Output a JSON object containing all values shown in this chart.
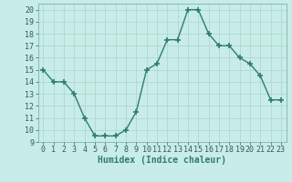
{
  "x": [
    0,
    1,
    2,
    3,
    4,
    5,
    6,
    7,
    8,
    9,
    10,
    11,
    12,
    13,
    14,
    15,
    16,
    17,
    18,
    19,
    20,
    21,
    22,
    23
  ],
  "y": [
    15,
    14,
    14,
    13,
    11,
    9.5,
    9.5,
    9.5,
    10,
    11.5,
    15,
    15.5,
    17.5,
    17.5,
    20,
    20,
    18,
    17,
    17,
    16,
    15.5,
    14.5,
    12.5,
    12.5
  ],
  "line_color": "#2e7d6e",
  "marker": "+",
  "markersize": 4,
  "linewidth": 1.0,
  "xlabel": "Humidex (Indice chaleur)",
  "xlabel_fontsize": 7,
  "tick_fontsize": 6,
  "ylim": [
    9,
    20.5
  ],
  "xlim": [
    -0.5,
    23.5
  ],
  "yticks": [
    9,
    10,
    11,
    12,
    13,
    14,
    15,
    16,
    17,
    18,
    19,
    20
  ],
  "xticks": [
    0,
    1,
    2,
    3,
    4,
    5,
    6,
    7,
    8,
    9,
    10,
    11,
    12,
    13,
    14,
    15,
    16,
    17,
    18,
    19,
    20,
    21,
    22,
    23
  ],
  "background_color": "#c8ece8",
  "grid_color": "#b0d8d0",
  "axis_bg": "#c8ece8"
}
